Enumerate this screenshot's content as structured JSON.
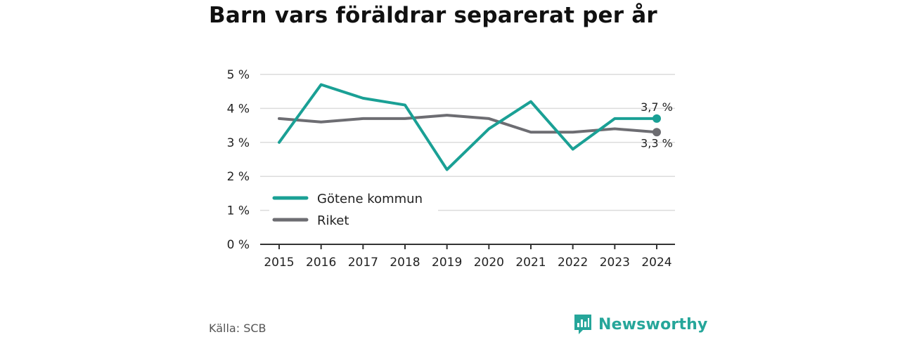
{
  "title": "Barn vars föräldrar separerat per år",
  "source": "Källa: SCB",
  "brand": {
    "name": "Newsworthy",
    "icon": "newsworthy-logo-icon",
    "color": "#26a69a"
  },
  "chart_data": {
    "type": "line",
    "title": "Barn vars föräldrar separerat per år",
    "x": [
      "2015",
      "2016",
      "2017",
      "2018",
      "2019",
      "2020",
      "2021",
      "2022",
      "2023",
      "2024"
    ],
    "ylim": [
      0,
      5
    ],
    "yticks": [
      0,
      1,
      2,
      3,
      4,
      5
    ],
    "ytick_labels": [
      "0 %",
      "1 %",
      "2 %",
      "3 %",
      "4 %",
      "5 %"
    ],
    "grid": true,
    "legend_position": "bottom-left",
    "series": [
      {
        "name": "Götene kommun",
        "color": "#1aa095",
        "values": [
          3.0,
          4.7,
          4.3,
          4.1,
          2.2,
          3.4,
          4.2,
          2.8,
          3.7,
          3.7
        ],
        "end_label": "3,7 %"
      },
      {
        "name": "Riket",
        "color": "#6d6d72",
        "values": [
          3.7,
          3.6,
          3.7,
          3.7,
          3.8,
          3.7,
          3.3,
          3.3,
          3.4,
          3.3
        ],
        "end_label": "3,3 %"
      }
    ]
  }
}
